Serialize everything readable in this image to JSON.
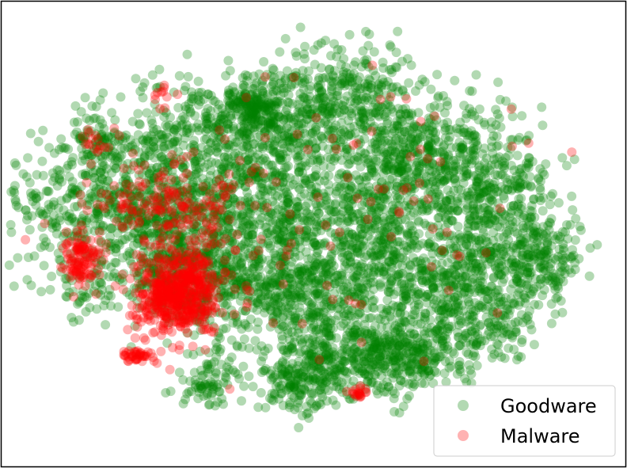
{
  "chart_data": {
    "type": "scatter",
    "title": "",
    "xlabel": "",
    "ylabel": "",
    "axes_ticks": "none",
    "grid": false,
    "legend_position": "bottom-right",
    "point_alpha": 0.3,
    "series": [
      {
        "name": "Goodware",
        "color": "#008000",
        "clusters": [
          {
            "cx": 0.22,
            "cy": 0.45,
            "sx": 0.1,
            "sy": 0.1,
            "n": 900
          },
          {
            "cx": 0.4,
            "cy": 0.47,
            "sx": 0.09,
            "sy": 0.12,
            "n": 700
          },
          {
            "cx": 0.55,
            "cy": 0.2,
            "sx": 0.06,
            "sy": 0.06,
            "n": 350
          },
          {
            "cx": 0.6,
            "cy": 0.48,
            "sx": 0.08,
            "sy": 0.1,
            "n": 650
          },
          {
            "cx": 0.78,
            "cy": 0.4,
            "sx": 0.06,
            "sy": 0.09,
            "n": 450
          },
          {
            "cx": 0.86,
            "cy": 0.55,
            "sx": 0.04,
            "sy": 0.05,
            "n": 260
          },
          {
            "cx": 0.65,
            "cy": 0.76,
            "sx": 0.06,
            "sy": 0.05,
            "n": 450
          },
          {
            "cx": 0.52,
            "cy": 0.76,
            "sx": 0.05,
            "sy": 0.05,
            "n": 260
          },
          {
            "cx": 0.38,
            "cy": 0.27,
            "sx": 0.1,
            "sy": 0.06,
            "n": 380
          },
          {
            "cx": 0.66,
            "cy": 0.32,
            "sx": 0.05,
            "sy": 0.05,
            "n": 260
          },
          {
            "cx": 0.46,
            "cy": 0.62,
            "sx": 0.08,
            "sy": 0.06,
            "n": 380
          },
          {
            "cx": 0.72,
            "cy": 0.62,
            "sx": 0.05,
            "sy": 0.05,
            "n": 260
          },
          {
            "cx": 0.47,
            "cy": 0.84,
            "sx": 0.03,
            "sy": 0.03,
            "n": 120
          },
          {
            "cx": 0.33,
            "cy": 0.82,
            "sx": 0.03,
            "sy": 0.04,
            "n": 90
          },
          {
            "cx": 0.15,
            "cy": 0.3,
            "sx": 0.02,
            "sy": 0.02,
            "n": 60
          },
          {
            "cx": 0.4,
            "cy": 0.22,
            "sx": 0.03,
            "sy": 0.03,
            "n": 160
          },
          {
            "cx": 0.8,
            "cy": 0.7,
            "sx": 0.03,
            "sy": 0.04,
            "n": 90
          },
          {
            "cx": 0.13,
            "cy": 0.63,
            "sx": 0.02,
            "sy": 0.04,
            "n": 30
          },
          {
            "cx": 0.06,
            "cy": 0.4,
            "sx": 0.03,
            "sy": 0.06,
            "n": 30
          },
          {
            "cx": 0.3,
            "cy": 0.6,
            "sx": 0.04,
            "sy": 0.05,
            "n": 160
          }
        ]
      },
      {
        "name": "Malware",
        "color": "#ff0000",
        "clusters": [
          {
            "cx": 0.28,
            "cy": 0.63,
            "sx": 0.035,
            "sy": 0.045,
            "n": 550
          },
          {
            "cx": 0.12,
            "cy": 0.55,
            "sx": 0.015,
            "sy": 0.03,
            "n": 110
          },
          {
            "cx": 0.21,
            "cy": 0.77,
            "sx": 0.012,
            "sy": 0.008,
            "n": 40
          },
          {
            "cx": 0.14,
            "cy": 0.3,
            "sx": 0.01,
            "sy": 0.01,
            "n": 15
          },
          {
            "cx": 0.25,
            "cy": 0.19,
            "sx": 0.008,
            "sy": 0.015,
            "n": 10
          },
          {
            "cx": 0.57,
            "cy": 0.85,
            "sx": 0.008,
            "sy": 0.008,
            "n": 20
          },
          {
            "cx": 0.3,
            "cy": 0.45,
            "sx": 0.05,
            "sy": 0.05,
            "n": 100
          },
          {
            "cx": 0.55,
            "cy": 0.5,
            "sx": 0.16,
            "sy": 0.2,
            "n": 100
          },
          {
            "cx": 0.23,
            "cy": 0.43,
            "sx": 0.06,
            "sy": 0.05,
            "n": 90
          }
        ]
      }
    ]
  },
  "legend": {
    "items": [
      {
        "label": "Goodware",
        "color": "#008000"
      },
      {
        "label": "Malware",
        "color": "#ff0000"
      }
    ]
  }
}
